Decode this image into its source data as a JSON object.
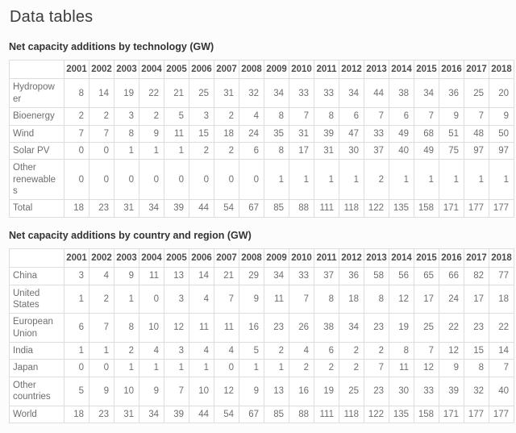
{
  "page_title": "Data tables",
  "colors": {
    "background": "#fcfcfc",
    "table_background": "#ffffff",
    "border": "#dddddd",
    "heading_text": "#3d3d3d",
    "caption_text": "#333333",
    "header_text": "#4c4c4c",
    "cell_text": "#6e6e6e"
  },
  "chart_data": [
    {
      "type": "table",
      "title": "Net capacity additions by technology (GW)",
      "columns": [
        "2001",
        "2002",
        "2003",
        "2004",
        "2005",
        "2006",
        "2007",
        "2008",
        "2009",
        "2010",
        "2011",
        "2012",
        "2013",
        "2014",
        "2015",
        "2016",
        "2017",
        "2018"
      ],
      "rows": [
        {
          "label": "Hydropower",
          "values": [
            8,
            14,
            19,
            22,
            21,
            25,
            31,
            32,
            34,
            33,
            33,
            34,
            44,
            38,
            34,
            36,
            25,
            20
          ]
        },
        {
          "label": "Bioenergy",
          "values": [
            2,
            2,
            3,
            2,
            5,
            3,
            2,
            4,
            8,
            7,
            8,
            6,
            7,
            6,
            7,
            9,
            7,
            9
          ]
        },
        {
          "label": "Wind",
          "values": [
            7,
            7,
            8,
            9,
            11,
            15,
            18,
            24,
            35,
            31,
            39,
            47,
            33,
            49,
            68,
            51,
            48,
            50
          ]
        },
        {
          "label": "Solar PV",
          "values": [
            0,
            0,
            1,
            1,
            1,
            2,
            2,
            6,
            8,
            17,
            31,
            30,
            37,
            40,
            49,
            75,
            97,
            97
          ]
        },
        {
          "label": "Other renewables",
          "values": [
            0,
            0,
            0,
            0,
            0,
            0,
            0,
            0,
            1,
            1,
            1,
            1,
            2,
            1,
            1,
            1,
            1,
            1
          ]
        },
        {
          "label": "Total",
          "values": [
            18,
            23,
            31,
            34,
            39,
            44,
            54,
            67,
            85,
            88,
            111,
            118,
            122,
            135,
            158,
            171,
            177,
            177
          ]
        }
      ]
    },
    {
      "type": "table",
      "title": "Net capacity additions by country and region (GW)",
      "columns": [
        "2001",
        "2002",
        "2003",
        "2004",
        "2005",
        "2006",
        "2007",
        "2008",
        "2009",
        "2010",
        "2011",
        "2012",
        "2013",
        "2014",
        "2015",
        "2016",
        "2017",
        "2018"
      ],
      "rows": [
        {
          "label": "China",
          "values": [
            3,
            4,
            9,
            11,
            13,
            14,
            21,
            29,
            34,
            33,
            37,
            36,
            58,
            56,
            65,
            66,
            82,
            77
          ]
        },
        {
          "label": "United States",
          "values": [
            1,
            2,
            1,
            0,
            3,
            4,
            7,
            9,
            11,
            7,
            8,
            18,
            8,
            12,
            17,
            24,
            17,
            18
          ]
        },
        {
          "label": "European Union",
          "values": [
            6,
            7,
            8,
            10,
            12,
            11,
            11,
            16,
            23,
            26,
            38,
            34,
            23,
            19,
            25,
            22,
            23,
            22
          ]
        },
        {
          "label": "India",
          "values": [
            1,
            1,
            2,
            4,
            3,
            4,
            4,
            5,
            2,
            4,
            6,
            2,
            2,
            8,
            7,
            12,
            15,
            14
          ]
        },
        {
          "label": "Japan",
          "values": [
            0,
            0,
            1,
            1,
            1,
            1,
            0,
            1,
            1,
            2,
            2,
            2,
            7,
            11,
            12,
            9,
            8,
            7
          ]
        },
        {
          "label": "Other countries",
          "values": [
            5,
            9,
            10,
            9,
            7,
            10,
            12,
            9,
            13,
            16,
            19,
            25,
            23,
            30,
            33,
            39,
            32,
            40
          ]
        },
        {
          "label": "World",
          "values": [
            18,
            23,
            31,
            34,
            39,
            44,
            54,
            67,
            85,
            88,
            111,
            118,
            122,
            135,
            158,
            171,
            177,
            177
          ]
        }
      ]
    }
  ]
}
